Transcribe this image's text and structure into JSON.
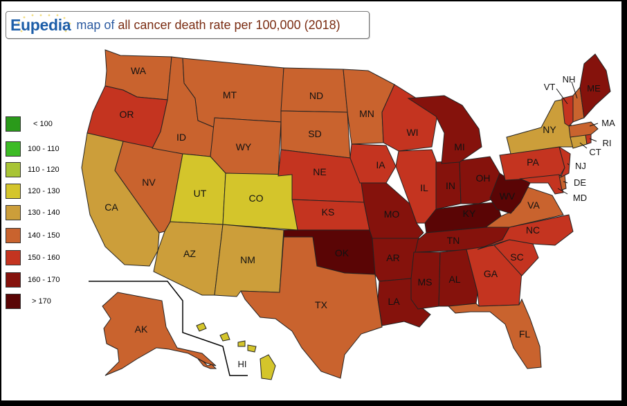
{
  "title": {
    "logo": "Eupedia",
    "prefix": "map of ",
    "highlight": "all cancer death rate per 100,000 (2018)"
  },
  "colors": {
    "c1": "#2a9a1a",
    "c2": "#3dbb25",
    "c3": "#a8c435",
    "c4": "#d4c52b",
    "c5": "#cc9e3a",
    "c6": "#c9632e",
    "c7": "#c43420",
    "c8": "#85120c",
    "c9": "#5a0505"
  },
  "legend": [
    {
      "label": "< 100",
      "color": "#2a9a1a"
    },
    {
      "label": "100 - 110",
      "color": "#3dbb25"
    },
    {
      "label": "110 - 120",
      "color": "#a8c435"
    },
    {
      "label": "120 - 130",
      "color": "#d4c52b"
    },
    {
      "label": "130 - 140",
      "color": "#cc9e3a"
    },
    {
      "label": "140 - 150",
      "color": "#c9632e"
    },
    {
      "label": "150 - 160",
      "color": "#c43420"
    },
    {
      "label": "160 - 170",
      "color": "#85120c"
    },
    {
      "label": "> 170",
      "color": "#5a0505"
    }
  ],
  "states": {
    "WA": "WA",
    "OR": "OR",
    "CA": "CA",
    "NV": "NV",
    "ID": "ID",
    "MT": "MT",
    "WY": "WY",
    "UT": "UT",
    "CO": "CO",
    "AZ": "AZ",
    "NM": "NM",
    "ND": "ND",
    "SD": "SD",
    "NE": "NE",
    "KS": "KS",
    "OK": "OK",
    "TX": "TX",
    "MN": "MN",
    "IA": "IA",
    "MO": "MO",
    "AR": "AR",
    "LA": "LA",
    "WI": "WI",
    "IL": "IL",
    "MI": "MI",
    "IN": "IN",
    "OH": "OH",
    "KY": "KY",
    "TN": "TN",
    "MS": "MS",
    "AL": "AL",
    "GA": "GA",
    "FL": "FL",
    "SC": "SC",
    "NC": "NC",
    "VA": "VA",
    "WV": "WV",
    "PA": "PA",
    "NY": "NY",
    "VT": "VT",
    "NH": "NH",
    "ME": "ME",
    "MA": "MA",
    "RI": "RI",
    "CT": "CT",
    "NJ": "NJ",
    "DE": "DE",
    "MD": "MD",
    "AK": "AK",
    "HI": "HI"
  }
}
